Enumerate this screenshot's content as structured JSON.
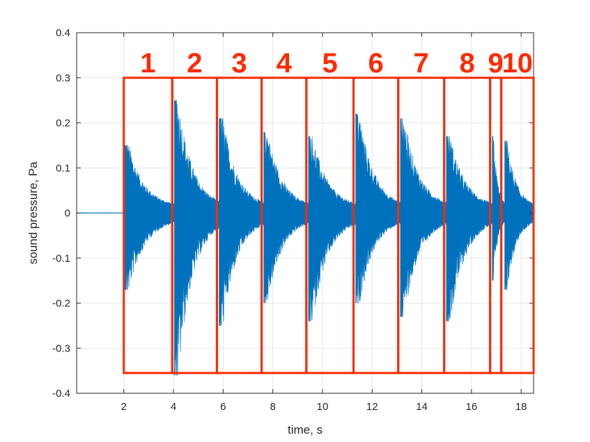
{
  "chart_data": {
    "type": "line",
    "xlabel": "time, s",
    "ylabel": "sound pressure, Pa",
    "xlim": [
      0.1,
      18.5
    ],
    "ylim": [
      -0.4,
      0.4
    ],
    "xticks": [
      2,
      4,
      6,
      8,
      10,
      12,
      14,
      16,
      18
    ],
    "xtick_labels": [
      "2",
      "4",
      "6",
      "8",
      "10",
      "12",
      "14",
      "16",
      "18"
    ],
    "yticks": [
      -0.4,
      -0.3,
      -0.2,
      -0.1,
      0,
      0.1,
      0.2,
      0.3,
      0.4
    ],
    "ytick_labels": [
      "-0.4",
      "-0.3",
      "-0.2",
      "-0.1",
      "0",
      "0.1",
      "0.2",
      "0.3",
      "0.4"
    ],
    "grid": true,
    "series": [
      {
        "color": "#0072bd",
        "description_points": "decaying impulses (peak amplitude at onset, envelope decay)",
        "impulses": [
          {
            "onset": 2.05,
            "peak_pos": 0.15,
            "peak_neg": -0.17
          },
          {
            "onset": 4.05,
            "peak_pos": 0.25,
            "peak_neg": -0.36
          },
          {
            "onset": 5.85,
            "peak_pos": 0.21,
            "peak_neg": -0.25
          },
          {
            "onset": 7.65,
            "peak_pos": 0.18,
            "peak_neg": -0.2
          },
          {
            "onset": 9.45,
            "peak_pos": 0.17,
            "peak_neg": -0.24
          },
          {
            "onset": 11.35,
            "peak_pos": 0.22,
            "peak_neg": -0.2
          },
          {
            "onset": 13.15,
            "peak_pos": 0.21,
            "peak_neg": -0.23
          },
          {
            "onset": 15.0,
            "peak_pos": 0.17,
            "peak_neg": -0.24
          },
          {
            "onset": 16.85,
            "peak_pos": 0.17,
            "peak_neg": -0.15
          },
          {
            "onset": 17.35,
            "peak_pos": 0.16,
            "peak_neg": -0.17
          }
        ],
        "baseline": {
          "from": 0.1,
          "to": 2.05,
          "value": 0
        }
      }
    ],
    "segments": {
      "color": "#ff2a00",
      "y_top": 0.3,
      "y_bottom": -0.355,
      "boundaries": [
        2.0,
        3.95,
        5.75,
        7.55,
        9.35,
        11.25,
        13.05,
        14.9,
        16.75,
        17.2,
        18.5
      ],
      "labels": [
        "1",
        "2",
        "3",
        "4",
        "5",
        "6",
        "7",
        "8",
        "9",
        "10"
      ]
    }
  }
}
